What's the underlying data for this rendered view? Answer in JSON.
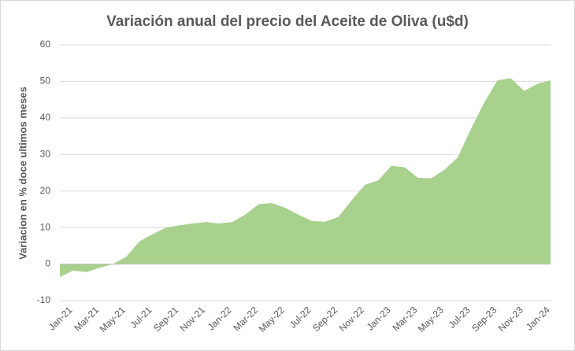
{
  "chart_data": {
    "type": "area",
    "title": "Variación anual del precio del Aceite de Oliva (u$d)",
    "y_label": "Variacion en % doce ultimos meses",
    "categories": [
      "Jan-21",
      null,
      "Mar-21",
      null,
      "May-21",
      null,
      "Jul-21",
      null,
      "Sep-21",
      null,
      "Nov-21",
      null,
      "Jan-22",
      null,
      "Mar-22",
      null,
      "May-22",
      null,
      "Jul-22",
      null,
      "Sep-22",
      null,
      "Nov-22",
      null,
      "Jan-23",
      null,
      "Mar-23",
      null,
      "May-23",
      null,
      "Jul-23",
      null,
      "Sep-23",
      null,
      "Nov-23",
      null,
      "Jan-24",
      null
    ],
    "values": [
      -3.5,
      -1.8,
      -2.2,
      -1.0,
      0.0,
      2.0,
      6.2,
      8.2,
      10.0,
      10.6,
      11.1,
      11.5,
      11.1,
      11.5,
      13.6,
      16.4,
      16.7,
      15.4,
      13.5,
      11.8,
      11.6,
      12.9,
      17.5,
      21.7,
      22.9,
      26.9,
      26.5,
      23.6,
      23.5,
      25.8,
      29.2,
      37.0,
      44.2,
      50.3,
      50.9,
      47.4,
      49.3,
      50.3
    ],
    "color": "#a9d18e",
    "ylim": [
      -10,
      60
    ],
    "yticks": [
      -10,
      0,
      10,
      20,
      30,
      40,
      50,
      60
    ],
    "grid": true
  }
}
